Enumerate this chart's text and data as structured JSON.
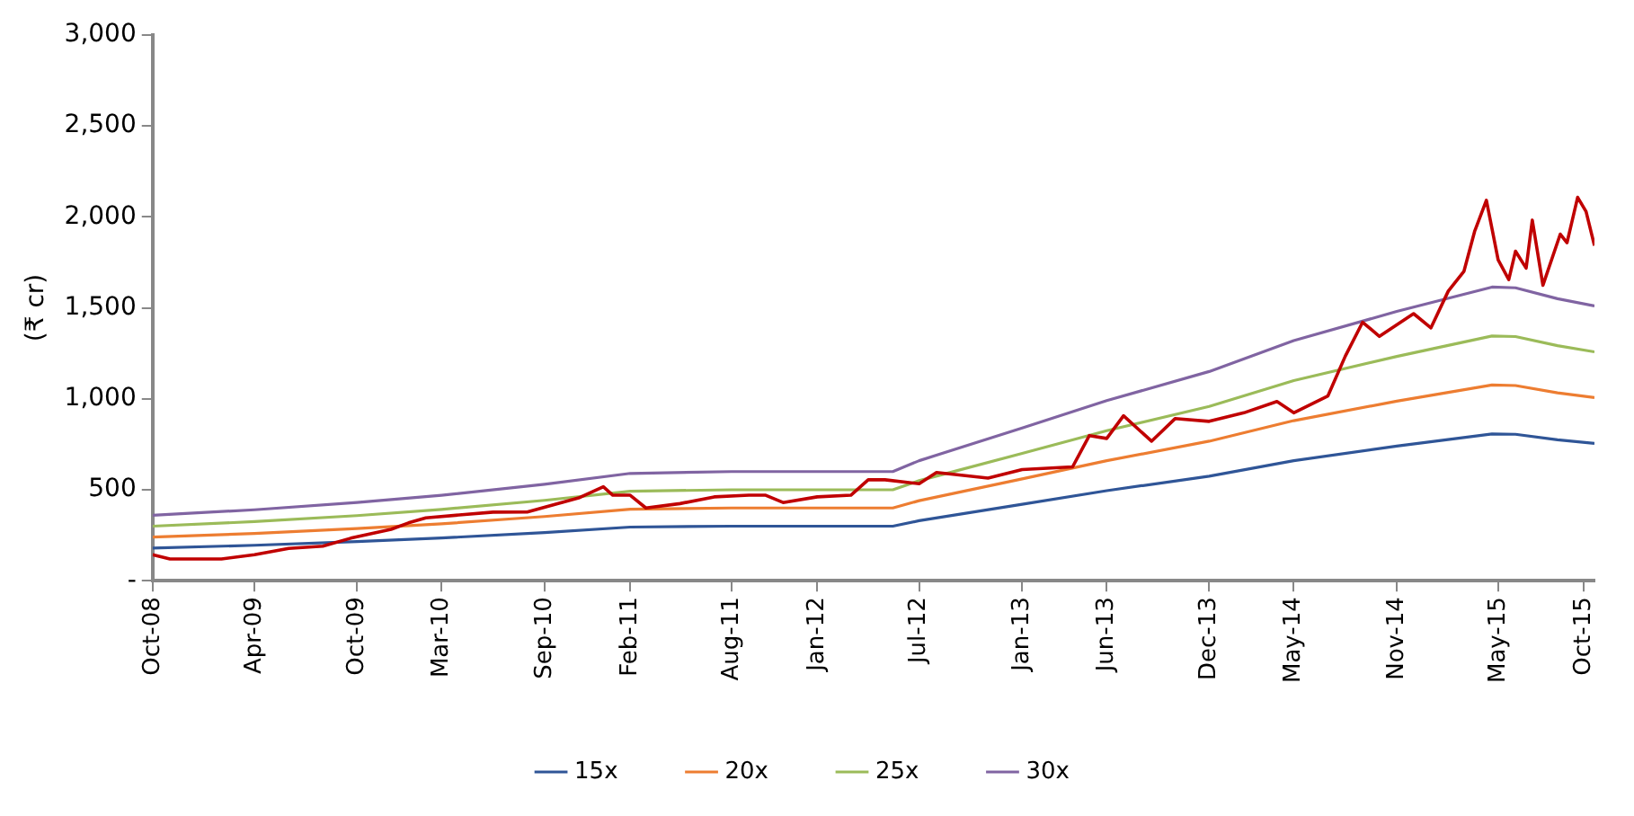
{
  "chart_data": {
    "type": "line",
    "ylabel": "(₹ cr)",
    "xlim": [
      "2008-10-01",
      "2015-10-20"
    ],
    "xticks": [
      {
        "value": "2008-10-01",
        "label": "Oct-08"
      },
      {
        "value": "2009-04-01",
        "label": "Apr-09"
      },
      {
        "value": "2009-10-01",
        "label": "Oct-09"
      },
      {
        "value": "2010-03-01",
        "label": "Mar-10"
      },
      {
        "value": "2010-09-01",
        "label": "Sep-10"
      },
      {
        "value": "2011-02-01",
        "label": "Feb-11"
      },
      {
        "value": "2011-08-01",
        "label": "Aug-11"
      },
      {
        "value": "2012-01-01",
        "label": "Jan-12"
      },
      {
        "value": "2012-07-01",
        "label": "Jul-12"
      },
      {
        "value": "2013-01-01",
        "label": "Jan-13"
      },
      {
        "value": "2013-06-01",
        "label": "Jun-13"
      },
      {
        "value": "2013-12-01",
        "label": "Dec-13"
      },
      {
        "value": "2014-05-01",
        "label": "May-14"
      },
      {
        "value": "2014-11-01",
        "label": "Nov-14"
      },
      {
        "value": "2015-05-01",
        "label": "May-15"
      },
      {
        "value": "2015-10-01",
        "label": "Oct-15"
      }
    ],
    "ylim": [
      0,
      3000
    ],
    "yticks": [
      {
        "value": 0,
        "label": "-"
      },
      500,
      {
        "value": 1000,
        "label": "1,000"
      },
      {
        "value": 1500,
        "label": "1,500"
      },
      {
        "value": 2000,
        "label": "2,000"
      },
      {
        "value": 2500,
        "label": "2,500"
      },
      {
        "value": 3000,
        "label": "3,000"
      }
    ],
    "grid": false,
    "legend": "bottom",
    "marker": "none",
    "line_style": "solid",
    "x": [
      "2008-10-01",
      "2009-04-01",
      "2009-10-01",
      "2010-03-01",
      "2010-09-01",
      "2011-02-01",
      "2011-08-01",
      "2012-01-01",
      "2012-05-15",
      "2012-07-01",
      "2013-01-01",
      "2013-06-01",
      "2013-12-01",
      "2014-05-01",
      "2014-11-01",
      "2015-04-20",
      "2015-06-01",
      "2015-08-15",
      "2015-10-20"
    ],
    "series": [
      {
        "name": "15x",
        "color": "#2f5597",
        "values": [
          180,
          195,
          215,
          235,
          265,
          295,
          300,
          300,
          300,
          330,
          420,
          495,
          575,
          660,
          740,
          807,
          805,
          775,
          755
        ]
      },
      {
        "name": "20x",
        "color": "#ed7d31",
        "values": [
          240,
          260,
          287,
          313,
          353,
          393,
          400,
          400,
          400,
          440,
          560,
          660,
          767,
          880,
          987,
          1076,
          1073,
          1033,
          1007
        ]
      },
      {
        "name": "25x",
        "color": "#9bbb59",
        "values": [
          300,
          325,
          358,
          392,
          442,
          492,
          500,
          500,
          500,
          550,
          700,
          825,
          958,
          1100,
          1233,
          1345,
          1342,
          1292,
          1258
        ]
      },
      {
        "name": "30x",
        "color": "#8064a2",
        "values": [
          360,
          390,
          430,
          470,
          530,
          590,
          600,
          600,
          600,
          660,
          840,
          990,
          1150,
          1320,
          1480,
          1614,
          1610,
          1550,
          1510
        ]
      },
      {
        "color": "#c00000",
        "x": [
          "2008-10-01",
          "2008-11-01",
          "2009-02-01",
          "2009-04-01",
          "2009-06-01",
          "2009-08-01",
          "2009-09-20",
          "2009-12-01",
          "2010-01-01",
          "2010-02-01",
          "2010-06-01",
          "2010-08-01",
          "2010-11-01",
          "2010-12-15",
          "2011-01-01",
          "2011-02-01",
          "2011-03-01",
          "2011-05-01",
          "2011-07-01",
          "2011-09-01",
          "2011-10-01",
          "2011-11-01",
          "2012-01-01",
          "2012-03-01",
          "2012-04-01",
          "2012-05-01",
          "2012-07-01",
          "2012-08-01",
          "2012-11-01",
          "2013-01-01",
          "2013-04-01",
          "2013-05-01",
          "2013-06-01",
          "2013-07-01",
          "2013-08-20",
          "2013-10-01",
          "2013-12-01",
          "2014-02-01",
          "2014-04-01",
          "2014-05-01",
          "2014-07-01",
          "2014-08-01",
          "2014-09-01",
          "2014-10-01",
          "2014-12-01",
          "2015-01-01",
          "2015-02-01",
          "2015-03-01",
          "2015-03-20",
          "2015-04-10",
          "2015-05-01",
          "2015-05-20",
          "2015-06-01",
          "2015-06-20",
          "2015-07-01",
          "2015-07-20",
          "2015-08-20",
          "2015-09-01",
          "2015-09-20",
          "2015-10-05",
          "2015-10-20"
        ],
        "values": [
          143,
          120,
          120,
          143,
          178,
          190,
          234,
          283,
          318,
          346,
          377,
          378,
          455,
          517,
          470,
          470,
          400,
          424,
          461,
          470,
          470,
          430,
          461,
          470,
          555,
          555,
          533,
          595,
          564,
          611,
          626,
          798,
          782,
          907,
          767,
          891,
          876,
          923,
          985,
          923,
          1016,
          1234,
          1421,
          1343,
          1468,
          1390,
          1592,
          1701,
          1920,
          2091,
          1764,
          1655,
          1811,
          1718,
          1982,
          1624,
          1905,
          1858,
          2107,
          2029,
          1842
        ]
      }
    ]
  }
}
